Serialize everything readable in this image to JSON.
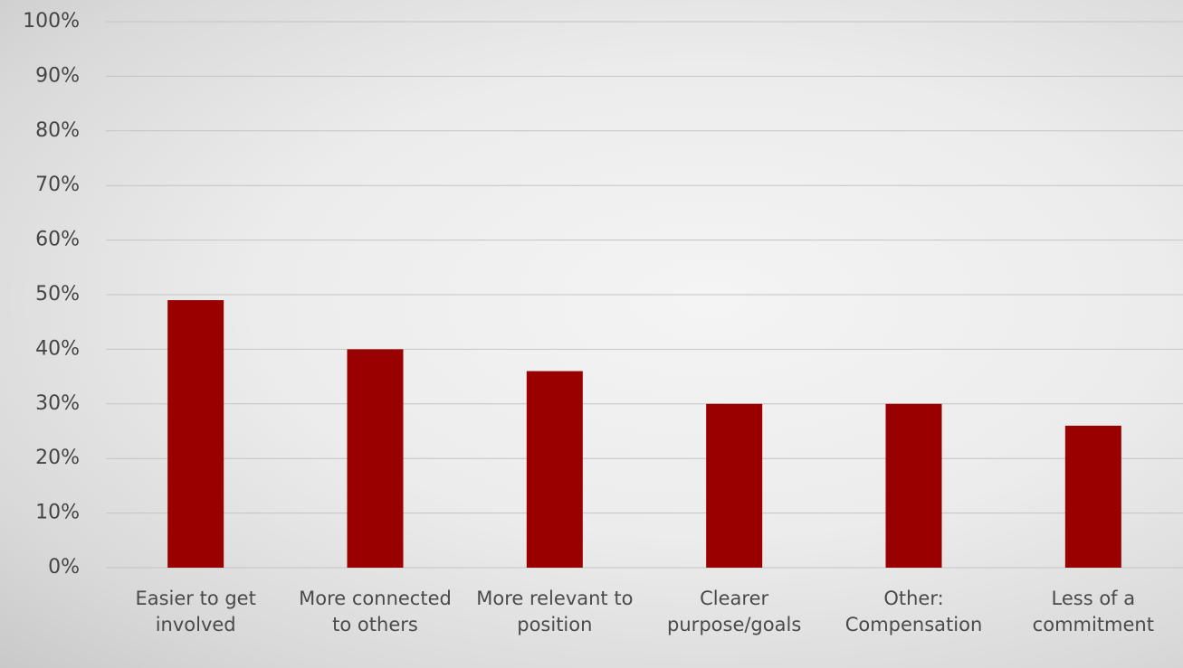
{
  "chart_data": {
    "type": "bar",
    "categories": [
      "Easier to get involved",
      "More connected to others",
      "More relevant to position",
      "Clearer purpose/goals",
      "Other: Compensation",
      "Less of a commitment"
    ],
    "values": [
      49,
      40,
      36,
      30,
      30,
      26
    ],
    "color": "#990000",
    "ylim": [
      0,
      100
    ],
    "yticks": [
      {
        "value": 0,
        "label": "0%"
      },
      {
        "value": 10,
        "label": "10%"
      },
      {
        "value": 20,
        "label": "20%"
      },
      {
        "value": 30,
        "label": "30%"
      },
      {
        "value": 40,
        "label": "40%"
      },
      {
        "value": 50,
        "label": "50%"
      },
      {
        "value": 60,
        "label": "60%"
      },
      {
        "value": 70,
        "label": "70%"
      },
      {
        "value": 80,
        "label": "80%"
      },
      {
        "value": 90,
        "label": "90%"
      },
      {
        "value": 100,
        "label": "100%"
      }
    ],
    "grid": true
  }
}
